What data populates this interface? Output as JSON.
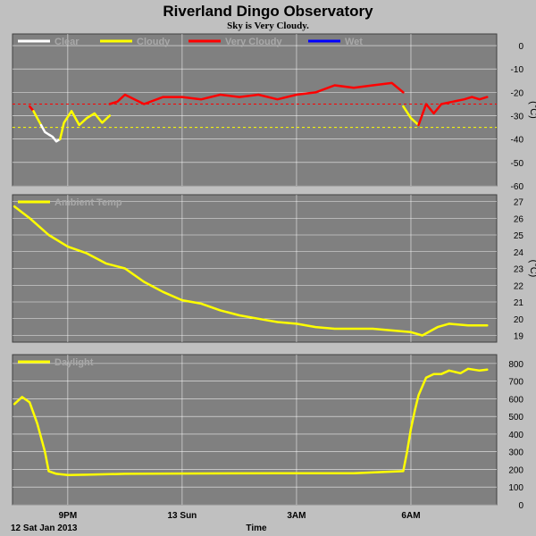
{
  "title": "Riverland Dingo Observatory",
  "subtitle": "Sky is Very Cloudy.",
  "x_axis": {
    "label": "Time",
    "start_label": "12 Sat Jan 2013",
    "ticks": [
      {
        "t": 0.5,
        "label": "9PM"
      },
      {
        "t": 3.5,
        "label": "13 Sun"
      },
      {
        "t": 6.5,
        "label": "3AM"
      },
      {
        "t": 9.5,
        "label": "6AM"
      }
    ]
  },
  "colors": {
    "background": "#c0c0c0",
    "plot_bg": "#808080",
    "grid": "#ffffff",
    "clear": "#ffffff",
    "cloudy": "#ffff00",
    "very_cloudy": "#ff0000",
    "wet": "#0000ff"
  },
  "chart_data": [
    {
      "type": "line",
      "ylabel": "(°C)",
      "ylim": [
        -60,
        5
      ],
      "yticks": [
        0,
        -10,
        -20,
        -30,
        -40,
        -50,
        -60
      ],
      "thresholds": [
        {
          "value": -25,
          "color": "#ff0000"
        },
        {
          "value": -35,
          "color": "#ffff00"
        }
      ],
      "legend": [
        {
          "name": "Clear",
          "color": "#ffffff"
        },
        {
          "name": "Cloudy",
          "color": "#ffff00"
        },
        {
          "name": "Very Cloudy",
          "color": "#ff0000"
        },
        {
          "name": "Wet",
          "color": "#0000ff"
        }
      ],
      "series": [
        {
          "name": "Very Cloudy",
          "color": "#ff0000",
          "x": [
            -0.5,
            -0.4
          ],
          "y": [
            -26,
            -28
          ]
        },
        {
          "name": "Cloudy",
          "color": "#ffff00",
          "x": [
            -0.4,
            -0.3,
            -0.2
          ],
          "y": [
            -28,
            -31,
            -34
          ]
        },
        {
          "name": "Clear",
          "color": "#ffffff",
          "x": [
            -0.2,
            -0.1,
            0.0,
            0.1,
            0.2,
            0.3
          ],
          "y": [
            -34,
            -37,
            -38,
            -39,
            -41,
            -40
          ]
        },
        {
          "name": "Cloudy",
          "color": "#ffff00",
          "x": [
            0.3,
            0.4,
            0.6,
            0.8,
            1.0,
            1.2,
            1.4,
            1.6
          ],
          "y": [
            -40,
            -33,
            -28,
            -34,
            -31,
            -29,
            -33,
            -30
          ]
        },
        {
          "name": "Very Cloudy",
          "color": "#ff0000",
          "x": [
            1.6,
            1.8,
            2.0,
            2.5,
            3.0,
            3.5,
            4.0,
            4.5,
            5.0,
            5.5,
            6.0,
            6.5,
            7.0,
            7.5,
            8.0,
            8.5,
            9.0,
            9.3
          ],
          "y": [
            -25,
            -24,
            -21,
            -25,
            -22,
            -22,
            -23,
            -21,
            -22,
            -21,
            -23,
            -21,
            -20,
            -17,
            -18,
            -17,
            -16,
            -20
          ]
        },
        {
          "name": "Cloudy",
          "color": "#ffff00",
          "x": [
            9.3,
            9.5,
            9.7
          ],
          "y": [
            -26,
            -31,
            -34
          ]
        },
        {
          "name": "Very Cloudy",
          "color": "#ff0000",
          "x": [
            9.7,
            9.9,
            10.1,
            10.3,
            10.6,
            10.9,
            11.1,
            11.3,
            11.5
          ],
          "y": [
            -34,
            -25,
            -29,
            -25,
            -24,
            -23,
            -22,
            -23,
            -22
          ]
        }
      ]
    },
    {
      "type": "line",
      "ylabel": "(°C)",
      "ylim": [
        18.6,
        27.4
      ],
      "yticks": [
        27,
        26,
        25,
        24,
        23,
        22,
        21,
        20,
        19
      ],
      "legend": [
        {
          "name": "Ambient Temp",
          "color": "#ffff00"
        }
      ],
      "series": [
        {
          "name": "Ambient Temp",
          "color": "#ffff00",
          "x": [
            -0.9,
            -0.5,
            0.0,
            0.5,
            1.0,
            1.5,
            2.0,
            2.5,
            3.0,
            3.5,
            4.0,
            4.5,
            5.0,
            5.5,
            6.0,
            6.5,
            7.0,
            7.5,
            8.0,
            8.5,
            9.0,
            9.5,
            9.8,
            10.2,
            10.5,
            11.0,
            11.5
          ],
          "y": [
            26.7,
            26.0,
            25.0,
            24.3,
            23.9,
            23.3,
            23.0,
            22.2,
            21.6,
            21.1,
            20.9,
            20.5,
            20.2,
            20.0,
            19.8,
            19.7,
            19.5,
            19.4,
            19.4,
            19.4,
            19.3,
            19.2,
            19.0,
            19.5,
            19.7,
            19.6,
            19.6
          ]
        }
      ]
    },
    {
      "type": "line",
      "ylabel": "",
      "ylim": [
        0,
        850
      ],
      "yticks": [
        800,
        700,
        600,
        500,
        400,
        300,
        200,
        100,
        0
      ],
      "legend": [
        {
          "name": "Daylight",
          "color": "#ffff00"
        }
      ],
      "series": [
        {
          "name": "Daylight",
          "color": "#ffff00",
          "x": [
            -0.9,
            -0.7,
            -0.5,
            -0.3,
            -0.1,
            0.0,
            0.2,
            0.5,
            1.0,
            2.0,
            4.0,
            6.0,
            8.0,
            9.3,
            9.4,
            9.5,
            9.6,
            9.7,
            9.9,
            10.1,
            10.3,
            10.5,
            10.8,
            11.0,
            11.3,
            11.5
          ],
          "y": [
            570,
            610,
            580,
            460,
            300,
            190,
            175,
            168,
            170,
            175,
            177,
            178,
            178,
            190,
            300,
            430,
            530,
            620,
            720,
            740,
            740,
            760,
            745,
            770,
            760,
            765
          ]
        }
      ]
    }
  ]
}
